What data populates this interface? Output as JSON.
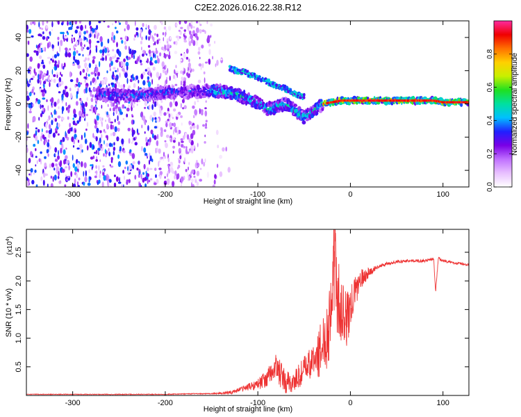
{
  "title": "C2E2.2026.016.22.38.R12",
  "chart_data": [
    {
      "type": "heatmap",
      "name": "spectrogram",
      "xlabel": "Height of straight line (km)",
      "ylabel": "Frequency (Hz)",
      "xlim": [
        -350,
        128
      ],
      "ylim": [
        -50,
        50
      ],
      "xticks": [
        -300,
        -200,
        -100,
        0,
        100
      ],
      "yticks": [
        -40,
        -20,
        0,
        20,
        40
      ],
      "xtick_labels": [
        "-300",
        "-200",
        "-100",
        "0",
        "100"
      ],
      "ytick_labels": [
        "-40",
        "-20",
        "0",
        "20",
        "40"
      ],
      "colorbar": {
        "label": "Normalized spectral amplitude",
        "range": [
          0,
          1
        ],
        "ticks": [
          0.0,
          0.2,
          0.4,
          0.6,
          0.8
        ],
        "tick_labels": [
          "0.0",
          "0.2",
          "0.4",
          "0.6",
          "0.8"
        ],
        "colors": [
          "#ffffff",
          "#e8c0ff",
          "#c070ff",
          "#7a00e6",
          "#2020ff",
          "#00c0ff",
          "#00e0a0",
          "#20e020",
          "#c8f000",
          "#ffd000",
          "#ff7000",
          "#f00000",
          "#ff2aa0"
        ]
      },
      "ridge": {
        "x": [
          -275,
          -250,
          -225,
          -200,
          -175,
          -150,
          -130,
          -115,
          -100,
          -90,
          -80,
          -70,
          -60,
          -50,
          -40,
          -30,
          -20,
          -10,
          0,
          20,
          50,
          80,
          90,
          100,
          128
        ],
        "y": [
          6,
          5,
          5,
          7,
          7,
          8,
          7,
          4,
          1,
          -3,
          -2,
          0,
          -4,
          -8,
          -4,
          0,
          1,
          2,
          2,
          2,
          2,
          2,
          2,
          1,
          1
        ]
      },
      "upper_branch": {
        "x": [
          -130,
          -115,
          -100,
          -85,
          -70,
          -60,
          -50
        ],
        "y": [
          21,
          19,
          16,
          12,
          9,
          6,
          4
        ]
      }
    },
    {
      "type": "line",
      "name": "snr",
      "xlabel": "Height of straight line (km)",
      "ylabel": "SNR (10 * v/v)",
      "yscale_label": "(x10",
      "yscale_exp": "4",
      "xlim": [
        -350,
        128
      ],
      "ylim": [
        0,
        2.9
      ],
      "xticks": [
        -300,
        -200,
        -100,
        0,
        100
      ],
      "yticks": [
        0.5,
        1.0,
        1.5,
        2.0,
        2.5
      ],
      "xtick_labels": [
        "-300",
        "-200",
        "-100",
        "0",
        "100"
      ],
      "ytick_labels": [
        "0.5",
        "1.0",
        "1.5",
        "2.0",
        "2.5"
      ],
      "color": "#ee3333",
      "series": [
        {
          "name": "SNR",
          "x": [
            -350,
            -300,
            -250,
            -200,
            -170,
            -150,
            -130,
            -120,
            -110,
            -100,
            -90,
            -80,
            -75,
            -70,
            -60,
            -50,
            -40,
            -35,
            -30,
            -25,
            -20,
            -18,
            -15,
            -10,
            -5,
            0,
            5,
            10,
            20,
            30,
            40,
            50,
            60,
            70,
            80,
            90,
            92,
            95,
            100,
            110,
            128
          ],
          "y": [
            0.02,
            0.02,
            0.02,
            0.02,
            0.03,
            0.03,
            0.05,
            0.1,
            0.15,
            0.2,
            0.3,
            0.5,
            0.35,
            0.2,
            0.25,
            0.45,
            0.6,
            0.7,
            0.9,
            1.1,
            1.6,
            2.3,
            1.8,
            1.5,
            1.3,
            1.5,
            1.8,
            2.0,
            2.15,
            2.25,
            2.3,
            2.33,
            2.35,
            2.35,
            2.35,
            2.38,
            1.8,
            2.4,
            2.35,
            2.32,
            2.28
          ]
        }
      ],
      "band_half_width": {
        "x": [
          -350,
          -150,
          -130,
          -110,
          -90,
          -80,
          -60,
          -40,
          -30,
          -20,
          -10,
          0,
          10,
          20,
          30,
          128
        ],
        "y": [
          0.005,
          0.008,
          0.03,
          0.06,
          0.15,
          0.25,
          0.2,
          0.3,
          0.5,
          0.8,
          0.6,
          0.4,
          0.2,
          0.08,
          0.03,
          0.02
        ]
      }
    }
  ]
}
